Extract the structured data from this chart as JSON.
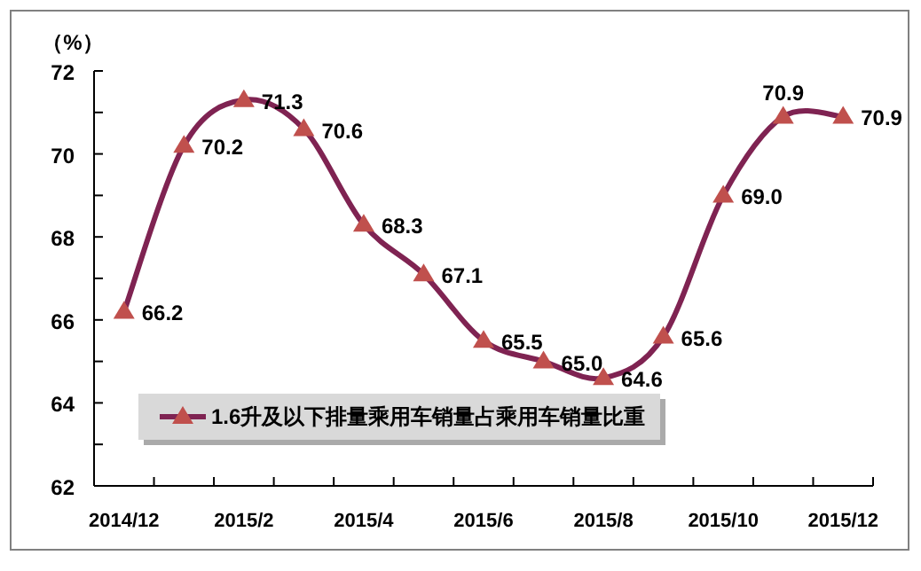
{
  "chart_data": {
    "type": "line",
    "ylabel": "（%）",
    "categories": [
      "2014/12",
      null,
      "2015/2",
      null,
      "2015/4",
      null,
      "2015/6",
      null,
      "2015/8",
      null,
      "2015/10",
      null,
      "2015/12"
    ],
    "series": [
      {
        "name": "1.6升及以下排量乘用车销量占乘用车销量比重",
        "color": "#7f2352",
        "values": [
          66.2,
          70.2,
          71.3,
          70.6,
          68.3,
          67.1,
          65.5,
          65.0,
          64.6,
          65.6,
          69.0,
          70.9,
          70.9
        ],
        "value_labels": [
          "66.2",
          "70.2",
          "71.3",
          "70.6",
          "68.3",
          "67.1",
          "65.5",
          "65.0",
          "64.6",
          "65.6",
          "69.0",
          "70.9",
          "70.9"
        ]
      }
    ],
    "marker": "triangle",
    "legend": "bottom left",
    "grid": false,
    "ylim": [
      62,
      72
    ],
    "yticks": [
      62,
      {
        "value": 63,
        "label": null
      },
      64,
      {
        "value": 65,
        "label": null
      },
      66,
      {
        "value": 67,
        "label": null
      },
      68,
      {
        "value": 69,
        "label": null
      },
      70,
      {
        "value": 71,
        "label": null
      },
      72
    ]
  }
}
